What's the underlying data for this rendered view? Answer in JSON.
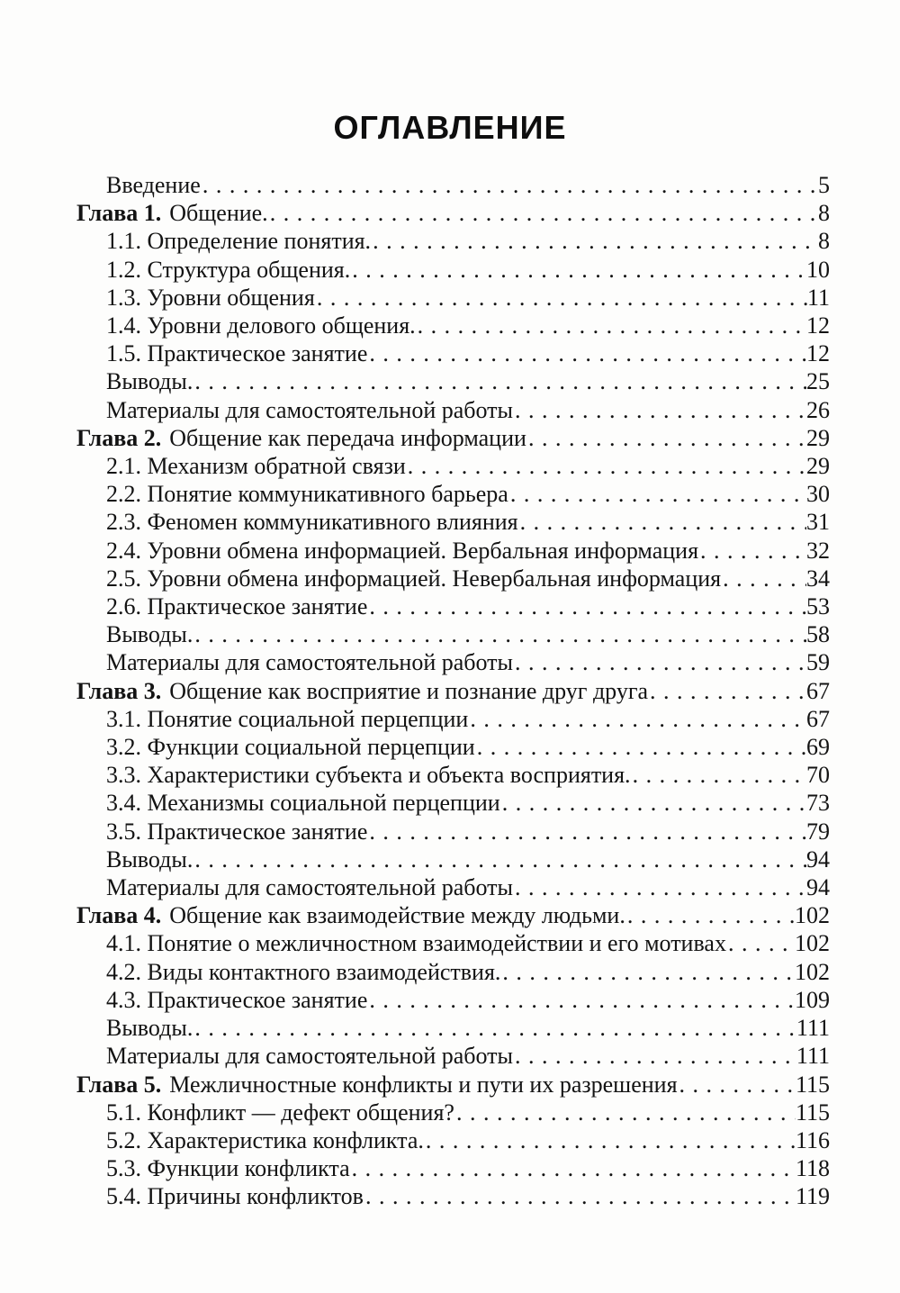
{
  "document": {
    "title": "ОГЛАВЛЕНИЕ",
    "toc": [
      {
        "prefix": "",
        "label": "Введение",
        "page": "5",
        "indent": true
      },
      {
        "prefix": "Глава 1.",
        "label": "Общение.",
        "page": "8",
        "indent": false
      },
      {
        "prefix": "",
        "label": "1.1. Определение понятия.",
        "page": "8",
        "indent": true
      },
      {
        "prefix": "",
        "label": "1.2. Структура общения.",
        "page": "10",
        "indent": true
      },
      {
        "prefix": "",
        "label": "1.3. Уровни общения",
        "page": "11",
        "indent": true
      },
      {
        "prefix": "",
        "label": "1.4. Уровни делового общения.",
        "page": "12",
        "indent": true
      },
      {
        "prefix": "",
        "label": "1.5. Практическое занятие",
        "page": "12",
        "indent": true
      },
      {
        "prefix": "",
        "label": "Выводы.",
        "page": "25",
        "indent": true
      },
      {
        "prefix": "",
        "label": "Материалы для самостоятельной работы",
        "page": "26",
        "indent": true
      },
      {
        "prefix": "Глава 2.",
        "label": "Общение как передача информации",
        "page": "29",
        "indent": false
      },
      {
        "prefix": "",
        "label": "2.1. Механизм обратной связи",
        "page": "29",
        "indent": true
      },
      {
        "prefix": "",
        "label": "2.2. Понятие коммуникативного барьера",
        "page": "30",
        "indent": true
      },
      {
        "prefix": "",
        "label": "2.3. Феномен коммуникативного влияния",
        "page": "31",
        "indent": true
      },
      {
        "prefix": "",
        "label": "2.4. Уровни обмена информацией. Вербальная информация",
        "page": "32",
        "indent": true
      },
      {
        "prefix": "",
        "label": "2.5. Уровни обмена информацией. Невербальная информация",
        "page": "34",
        "indent": true
      },
      {
        "prefix": "",
        "label": "2.6. Практическое занятие",
        "page": "53",
        "indent": true
      },
      {
        "prefix": "",
        "label": "Выводы.",
        "page": "58",
        "indent": true
      },
      {
        "prefix": "",
        "label": "Материалы для самостоятельной работы",
        "page": "59",
        "indent": true
      },
      {
        "prefix": "Глава 3.",
        "label": "Общение как восприятие и познание друг друга",
        "page": "67",
        "indent": false
      },
      {
        "prefix": "",
        "label": "3.1. Понятие социальной перцепции",
        "page": "67",
        "indent": true
      },
      {
        "prefix": "",
        "label": "3.2. Функции социальной перцепции",
        "page": "69",
        "indent": true
      },
      {
        "prefix": "",
        "label": "3.3. Характеристики субъекта и объекта восприятия.",
        "page": "70",
        "indent": true
      },
      {
        "prefix": "",
        "label": "3.4. Механизмы социальной перцепции",
        "page": "73",
        "indent": true
      },
      {
        "prefix": "",
        "label": "3.5. Практическое занятие",
        "page": "79",
        "indent": true
      },
      {
        "prefix": "",
        "label": "Выводы.",
        "page": "94",
        "indent": true
      },
      {
        "prefix": "",
        "label": "Материалы для самостоятельной работы",
        "page": "94",
        "indent": true
      },
      {
        "prefix": "Глава 4.",
        "label": "Общение как взаимодействие между людьми.",
        "page": "102",
        "indent": false
      },
      {
        "prefix": "",
        "label": "4.1. Понятие о межличностном взаимодействии и его мотивах",
        "page": "102",
        "indent": true
      },
      {
        "prefix": "",
        "label": "4.2. Виды контактного взаимодействия.",
        "page": "102",
        "indent": true
      },
      {
        "prefix": "",
        "label": "4.3. Практическое занятие",
        "page": "109",
        "indent": true
      },
      {
        "prefix": "",
        "label": "Выводы.",
        "page": "111",
        "indent": true
      },
      {
        "prefix": "",
        "label": "Материалы для самостоятельной работы",
        "page": "111",
        "indent": true
      },
      {
        "prefix": "Глава 5.",
        "label": "Межличностные конфликты и пути их разрешения",
        "page": "115",
        "indent": false
      },
      {
        "prefix": "",
        "label": "5.1. Конфликт — дефект общения?",
        "page": "115",
        "indent": true
      },
      {
        "prefix": "",
        "label": "5.2. Характеристика конфликта.",
        "page": "116",
        "indent": true
      },
      {
        "prefix": "",
        "label": "5.3. Функции конфликта",
        "page": "118",
        "indent": true
      },
      {
        "prefix": "",
        "label": "5.4. Причины конфликтов",
        "page": "119",
        "indent": true
      }
    ]
  }
}
